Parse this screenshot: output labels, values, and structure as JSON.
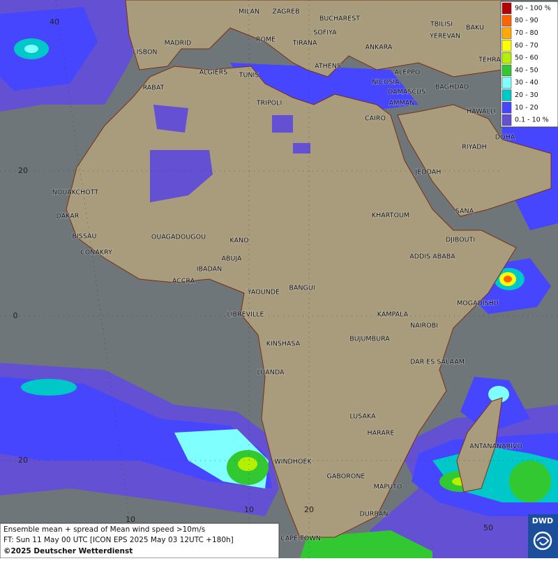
{
  "legend": {
    "items": [
      {
        "label": "90 - 100 %",
        "color": "#b40000"
      },
      {
        "label": "80 - 90",
        "color": "#ff6400"
      },
      {
        "label": "70 - 80",
        "color": "#ffaa00"
      },
      {
        "label": "60 - 70",
        "color": "#ffff00"
      },
      {
        "label": "50 - 60",
        "color": "#b4f000"
      },
      {
        "label": "40 - 50",
        "color": "#32c832"
      },
      {
        "label": "30 - 40",
        "color": "#80ffff"
      },
      {
        "label": "20 - 30",
        "color": "#00c8c8"
      },
      {
        "label": "10 - 20",
        "color": "#4646ff"
      },
      {
        "label": "0.1 - 10 %",
        "color": "#6450d2"
      }
    ]
  },
  "cities": [
    "MILAN",
    "ZAGREB",
    "BUCHAREST",
    "SOFIYA",
    "MADRID",
    "ROME",
    "TIRANA",
    "ANKARA",
    "TBILISI",
    "YEREVAN",
    "BAKU",
    "TEHRA",
    "LISBON",
    "ALGIERS",
    "TUNIS",
    "ATHENS",
    "ALEPPO",
    "RABAT",
    "NICOSIA",
    "BAGHDAD",
    "DAMASCUS",
    "TRIPOLI",
    "AMMAN",
    "HAWALLI",
    "CAIRO",
    "DOHA",
    "RIYADH",
    "JEDDAH",
    "NOUAKCHOTT",
    "SANA",
    "KHARTOUM",
    "DAKAR",
    "BISSAU",
    "OUAGADOUGOU",
    "KANO",
    "DJIBOUTI",
    "CONAKRY",
    "ABUJA",
    "ADDIS ABABA",
    "IBADAN",
    "ACCRA",
    "YAOUNDE",
    "BANGUI",
    "MOGADISHU",
    "LIBREVILLE",
    "KAMPALA",
    "NAIROBI",
    "KINSHASA",
    "BUJUMBURA",
    "DAR ES SALAAM",
    "LUANDA",
    "LUSAKA",
    "HARARE",
    "ANTANANARIVO",
    "WINDHOEK",
    "GABORONE",
    "MAPUTO",
    "DURBAN",
    "CAPE TOWN"
  ],
  "grid_labels": [
    "40",
    "20",
    "0",
    "20",
    "10",
    "10",
    "20",
    "50"
  ],
  "footer": {
    "line1": "Ensemble mean + spread of Mean wind speed >10m/s",
    "line2": "FT: Sun 11 May 00 UTC [ICON EPS 2025 May 03 12UTC +180h]",
    "line3": "©2025 Deutscher Wetterdienst"
  },
  "logo": "DWD"
}
